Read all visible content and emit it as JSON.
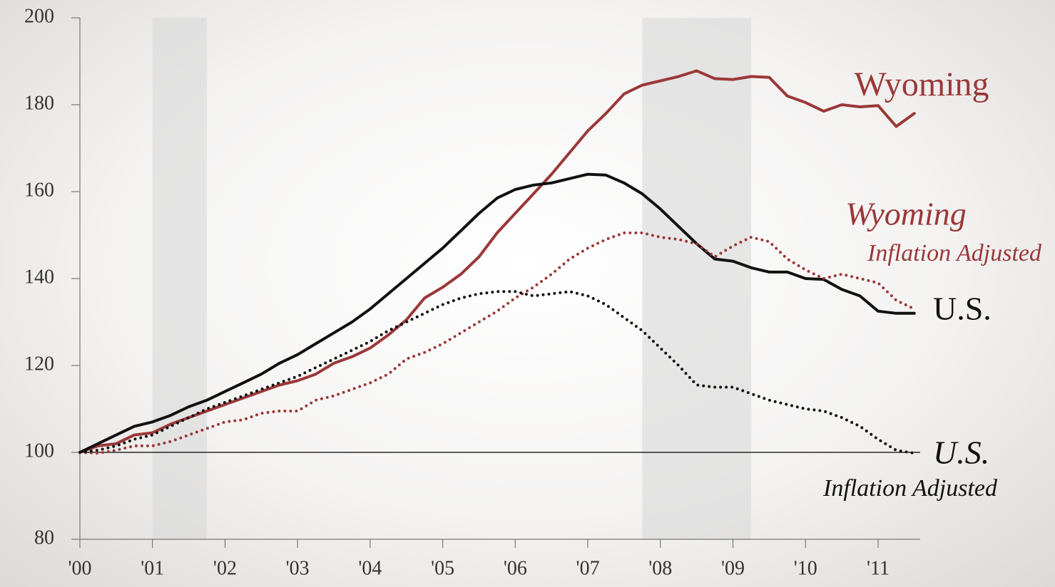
{
  "chart_data": {
    "type": "line",
    "x": [
      2000,
      2000.25,
      2000.5,
      2000.75,
      2001,
      2001.25,
      2001.5,
      2001.75,
      2002,
      2002.25,
      2002.5,
      2002.75,
      2003,
      2003.25,
      2003.5,
      2003.75,
      2004,
      2004.25,
      2004.5,
      2004.75,
      2005,
      2005.25,
      2005.5,
      2005.75,
      2006,
      2006.25,
      2006.5,
      2006.75,
      2007,
      2007.25,
      2007.5,
      2007.75,
      2008,
      2008.25,
      2008.5,
      2008.75,
      2009,
      2009.25,
      2009.5,
      2009.75,
      2010,
      2010.25,
      2010.5,
      2010.75,
      2011,
      2011.25,
      2011.5
    ],
    "series": [
      {
        "name": "Wyoming",
        "color": "#9b3838",
        "dotted": false,
        "values": [
          100,
          101.5,
          102,
          104,
          104.5,
          106.5,
          108,
          109.5,
          111,
          112.5,
          114,
          115.5,
          116.5,
          118,
          120.5,
          122,
          124,
          127,
          130.5,
          135.5,
          138,
          141,
          145,
          150.5,
          155,
          159.5,
          164,
          169,
          174,
          178,
          182.5,
          184.5,
          185.5,
          186.5,
          187.8,
          186,
          185.8,
          186.5,
          186.3,
          182,
          180.5,
          178.5,
          180,
          179.5,
          179.8,
          175,
          178
        ]
      },
      {
        "name": "U.S.",
        "color": "#111111",
        "dotted": false,
        "values": [
          100,
          102,
          104,
          106,
          107,
          108.5,
          110.5,
          112,
          114,
          116,
          118,
          120.5,
          122.5,
          125,
          127.5,
          130,
          133,
          136.5,
          140,
          143.5,
          147,
          151,
          155,
          158.5,
          160.5,
          161.5,
          162,
          163,
          164,
          163.8,
          162,
          159.5,
          156,
          152,
          148,
          144.5,
          144,
          142.5,
          141.5,
          141.5,
          140,
          139.8,
          137.5,
          136,
          132.5,
          132,
          132
        ]
      },
      {
        "name": "Wyoming",
        "sublabel": "Inflation Adjusted",
        "color": "#9b3838",
        "dotted": true,
        "values": [
          100,
          99.8,
          100.5,
          101.5,
          101.5,
          102.5,
          104,
          105.5,
          107,
          107.5,
          109,
          109.5,
          109.5,
          112,
          113,
          114.5,
          116,
          118,
          121.5,
          123,
          125,
          127.5,
          130,
          132.5,
          135.5,
          138,
          141,
          144.5,
          147,
          149,
          150.5,
          150.5,
          149.5,
          149,
          148,
          145,
          147.5,
          149.5,
          148.5,
          144.5,
          142,
          140,
          141,
          140,
          139,
          135,
          133
        ]
      },
      {
        "name": "U.S.",
        "sublabel": "Inflation Adjusted",
        "color": "#111111",
        "dotted": true,
        "values": [
          100,
          100.5,
          101.5,
          103,
          104,
          106,
          108,
          110,
          111.5,
          113,
          114.5,
          116,
          117.5,
          119.5,
          121.5,
          123.5,
          125.5,
          128,
          130,
          132,
          134,
          135.5,
          136.5,
          137,
          137,
          136,
          136.5,
          137,
          136,
          134,
          131,
          128,
          124,
          120,
          115.5,
          115,
          115,
          113.5,
          112,
          111,
          110,
          109.5,
          108,
          106,
          103,
          100.5,
          99.8
        ]
      }
    ],
    "xlim": [
      2000,
      2011.6
    ],
    "xticks": [
      {
        "value": 2000,
        "label": "'00"
      },
      {
        "value": 2001,
        "label": "'01"
      },
      {
        "value": 2002,
        "label": "'02"
      },
      {
        "value": 2003,
        "label": "'03"
      },
      {
        "value": 2004,
        "label": "'04"
      },
      {
        "value": 2005,
        "label": "'05"
      },
      {
        "value": 2006,
        "label": "'06"
      },
      {
        "value": 2007,
        "label": "'07"
      },
      {
        "value": 2008,
        "label": "'08"
      },
      {
        "value": 2009,
        "label": "'09"
      },
      {
        "value": 2010,
        "label": "'10"
      },
      {
        "value": 2011,
        "label": "'11"
      }
    ],
    "ylim": [
      80,
      200
    ],
    "yticks": [
      80,
      100,
      120,
      140,
      160,
      180,
      200
    ],
    "shaded_ranges": [
      [
        2001,
        2001.75
      ],
      [
        2007.75,
        2009.25
      ]
    ],
    "reference_line": 100,
    "grid": false
  }
}
